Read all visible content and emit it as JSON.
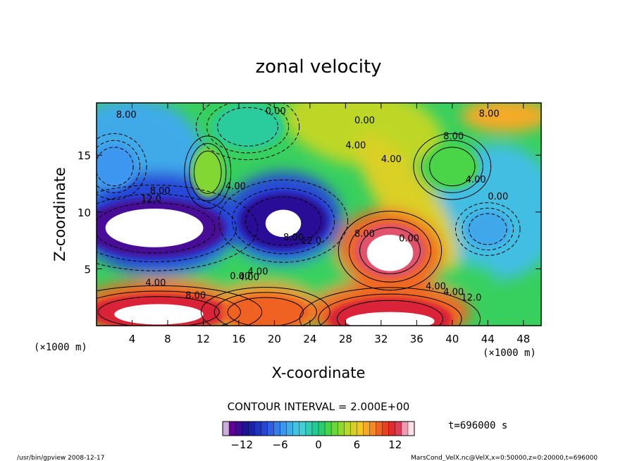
{
  "chart_data": {
    "type": "heatmap",
    "title": "zonal velocity",
    "xlabel": "X-coordinate",
    "ylabel": "Z-coordinate",
    "x_unit_note": "(×1000 m)",
    "y_unit_note": "(×1000 m)",
    "xlim": [
      0,
      50
    ],
    "ylim": [
      0,
      19.6
    ],
    "x_ticks": [
      "4",
      "8",
      "12",
      "16",
      "20",
      "24",
      "28",
      "32",
      "36",
      "40",
      "44",
      "48"
    ],
    "y_ticks": [
      "5",
      "10",
      "15"
    ],
    "contour_interval_text": "CONTOUR INTERVAL = 2.000E+00",
    "time_text": "t=696000 s",
    "colorbar": {
      "range": [
        -15,
        15
      ],
      "tick_labels": [
        "−12",
        "−6",
        "0",
        "6",
        "12"
      ],
      "tick_values": [
        -12,
        -6,
        0,
        6,
        12
      ]
    },
    "contour_labels": [
      "8.00",
      "12.0",
      "4.00",
      "0.00",
      "8.00",
      "12.0",
      "8.00",
      "4.00",
      "4.00",
      "0.00",
      "4.00",
      "8.00",
      "4.00",
      "0.00",
      "8.00",
      "4.00",
      "0.00",
      "8.00",
      "8.00",
      "4.00",
      "4.00",
      "0.00",
      "4.00",
      "12.0"
    ],
    "features": [
      {
        "x": 6.5,
        "z": 8.6,
        "value": -16
      },
      {
        "x": 21,
        "z": 9.2,
        "value": -15
      },
      {
        "x": 12.5,
        "z": 13.5,
        "value": 4
      },
      {
        "x": 33,
        "z": 6.6,
        "value": 16
      },
      {
        "x": 7,
        "z": 1.2,
        "value": 15
      },
      {
        "x": 19,
        "z": 1.2,
        "value": 12
      },
      {
        "x": 33,
        "z": 0.6,
        "value": 15
      },
      {
        "x": 44,
        "z": 8.5,
        "value": -6
      },
      {
        "x": 40,
        "z": 14,
        "value": 2
      },
      {
        "x": 17,
        "z": 17.5,
        "value": -1
      },
      {
        "x": 2,
        "z": 14,
        "value": -7
      }
    ]
  },
  "footer": {
    "left": "/usr/bin/gpview   2008-12-17",
    "right": "MarsCond_VelX.nc@VelX,x=0:50000,z=0:20000,t=696000"
  }
}
